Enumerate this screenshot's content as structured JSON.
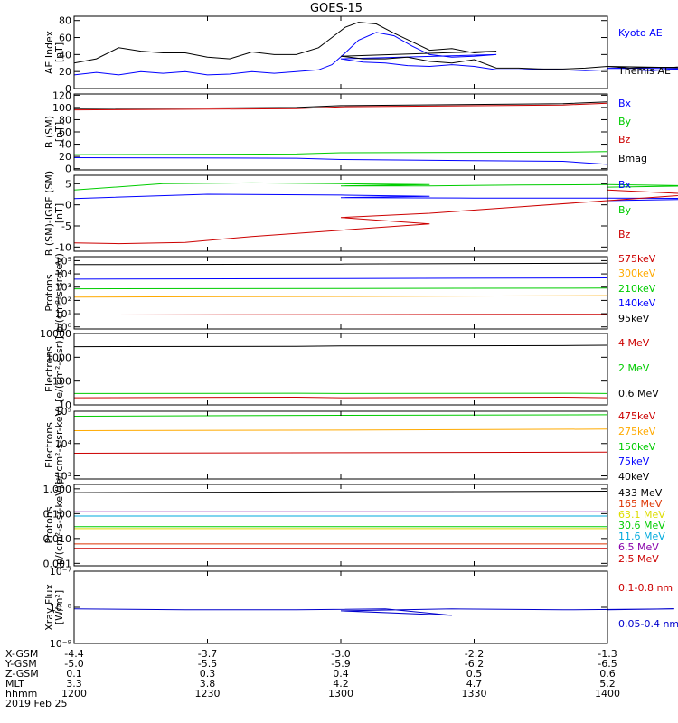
{
  "title": "GOES-15",
  "chart_data": [
    {
      "type": "line",
      "ylabel": [
        "AE Index",
        "[nT]"
      ],
      "yscale": "linear",
      "ylim": [
        0,
        85
      ],
      "yticks": [
        0,
        20,
        40,
        60,
        80
      ],
      "ytick_labels": [
        "0",
        "20",
        "40",
        "60",
        "80"
      ],
      "series": [
        {
          "name": "Kyoto AE",
          "color": "#0000ff",
          "x": [
            1200,
            1205,
            1210,
            1215,
            1220,
            1225,
            1230,
            1235,
            1240,
            1245,
            1250,
            1255,
            1258,
            1261,
            1264,
            1268,
            1272,
            1276,
            1280,
            1285,
            1290,
            1295,
            1300,
            1305,
            1310,
            1315,
            1320,
            1325,
            1330,
            1335,
            1340,
            1345,
            1350,
            1355,
            1360,
            1365,
            1370,
            1375,
            1380,
            1385,
            1390,
            1395,
            1400
          ],
          "y": [
            16,
            19,
            16,
            20,
            18,
            20,
            16,
            17,
            20,
            18,
            20,
            22,
            28,
            42,
            57,
            66,
            62,
            50,
            40,
            37,
            38,
            40,
            35,
            31,
            30,
            27,
            26,
            28,
            26,
            22,
            22,
            23,
            22,
            21,
            22,
            22,
            21,
            23,
            22,
            23,
            22,
            23,
            24
          ]
        },
        {
          "name": "Themis AE",
          "color": "#000000",
          "x": [
            1200,
            1205,
            1210,
            1215,
            1220,
            1225,
            1230,
            1235,
            1240,
            1245,
            1250,
            1255,
            1258,
            1261,
            1264,
            1268,
            1272,
            1276,
            1280,
            1285,
            1290,
            1295,
            1300,
            1305,
            1310,
            1315,
            1320,
            1325,
            1330,
            1335,
            1340,
            1345,
            1350,
            1355,
            1360,
            1365,
            1370,
            1375,
            1380,
            1385,
            1390,
            1395,
            1400
          ],
          "y": [
            30,
            35,
            48,
            44,
            42,
            42,
            37,
            35,
            43,
            40,
            40,
            48,
            60,
            72,
            78,
            76,
            65,
            55,
            45,
            47,
            42,
            44,
            38,
            35,
            35,
            37,
            32,
            30,
            34,
            24,
            24,
            23,
            23,
            24,
            26,
            24,
            25,
            25,
            27,
            22,
            23,
            23,
            26
          ]
        }
      ]
    },
    {
      "type": "line",
      "ylabel": [
        "B (SM)",
        "[nT]"
      ],
      "yscale": "linear",
      "ylim": [
        -2,
        122
      ],
      "yticks": [
        0,
        20,
        40,
        60,
        80,
        100,
        120
      ],
      "ytick_labels": [
        "0",
        "20",
        "40",
        "60",
        "80",
        "100",
        "120"
      ],
      "series": [
        {
          "name": "Bx",
          "color": "#0000ff",
          "x": [
            1200,
            1250,
            1300,
            1350,
            1400
          ],
          "y": [
            18,
            17,
            15,
            12,
            7
          ]
        },
        {
          "name": "By",
          "color": "#00cc00",
          "x": [
            1200,
            1250,
            1300,
            1350,
            1400
          ],
          "y": [
            23,
            24,
            26,
            27,
            28
          ]
        },
        {
          "name": "Bz",
          "color": "#cc0000",
          "x": [
            1200,
            1250,
            1300,
            1350,
            1400
          ],
          "y": [
            96,
            98,
            101,
            104,
            107
          ]
        },
        {
          "name": "Bmag",
          "color": "#000000",
          "x": [
            1200,
            1250,
            1300,
            1350,
            1400
          ],
          "y": [
            98,
            100,
            103,
            106,
            109
          ]
        }
      ]
    },
    {
      "type": "line",
      "ylabel": [
        "B (SM)-IGRF (SM)",
        "[nT]"
      ],
      "yscale": "linear",
      "ylim": [
        -11,
        7
      ],
      "yticks": [
        -10,
        -5,
        0,
        5
      ],
      "ytick_labels": [
        "-10",
        "-5",
        "0",
        "5"
      ],
      "series": [
        {
          "name": "Bx",
          "color": "#0000ff",
          "x": [
            1200,
            1230,
            1260,
            1280,
            1300,
            1330,
            1360,
            1390,
            1400
          ],
          "y": [
            1.5,
            2.5,
            2.3,
            2,
            1.7,
            1.6,
            1.6,
            1.5,
            1
          ]
        },
        {
          "name": "By",
          "color": "#00cc00",
          "x": [
            1200,
            1220,
            1240,
            1260,
            1280,
            1300,
            1320,
            1340,
            1360,
            1380,
            1400
          ],
          "y": [
            3.5,
            5,
            5.2,
            5,
            4.8,
            4.5,
            4.5,
            4.7,
            4.8,
            4.5,
            4.2
          ]
        },
        {
          "name": "Bz",
          "color": "#cc0000",
          "x": [
            1200,
            1210,
            1225,
            1240,
            1260,
            1280,
            1300,
            1320,
            1340,
            1360,
            1380,
            1400
          ],
          "y": [
            -9,
            -9.2,
            -8.9,
            -7.5,
            -6,
            -4.5,
            -3,
            -2,
            -0.5,
            1,
            2.5,
            3.5
          ]
        }
      ]
    },
    {
      "type": "line",
      "ylabel": [
        "Protons",
        "p/(cm²-s-sr-keV)"
      ],
      "yscale": "log",
      "ylim": [
        0.7,
        200000
      ],
      "yticks": [
        1,
        10,
        100,
        1000,
        10000,
        100000
      ],
      "ytick_labels": [
        "10⁰",
        "10¹",
        "10²",
        "10³",
        "10⁴",
        "10⁵"
      ],
      "series": [
        {
          "name": "575keV",
          "color": "#cc0000",
          "x": [
            1200,
            1300,
            1400
          ],
          "y": [
            8,
            8.5,
            9
          ]
        },
        {
          "name": "300keV",
          "color": "#ffaa00",
          "x": [
            1200,
            1300,
            1400
          ],
          "y": [
            180,
            200,
            230
          ]
        },
        {
          "name": "210keV",
          "color": "#00cc00",
          "x": [
            1200,
            1300,
            1400
          ],
          "y": [
            750,
            800,
            850
          ]
        },
        {
          "name": "140keV",
          "color": "#0000ff",
          "x": [
            1200,
            1300,
            1400
          ],
          "y": [
            4000,
            4500,
            5000
          ]
        },
        {
          "name": "95keV",
          "color": "#000000",
          "x": [
            1200,
            1300,
            1400
          ],
          "y": [
            50000,
            55000,
            65000
          ]
        }
      ]
    },
    {
      "type": "line",
      "ylabel": [
        "Electrons",
        "[e/(cm²-s-sr)]"
      ],
      "yscale": "log",
      "ylim": [
        10,
        10000
      ],
      "yticks": [
        10,
        100,
        1000,
        10000
      ],
      "ytick_labels": [
        "10",
        "100",
        "1000",
        "10000"
      ],
      "series": [
        {
          "name": "4 MeV",
          "color": "#cc0000",
          "x": [
            1200,
            1250,
            1300,
            1350,
            1400
          ],
          "y": [
            20,
            21,
            20,
            21,
            20
          ]
        },
        {
          "name": "2 MeV",
          "color": "#00cc00",
          "x": [
            1200,
            1250,
            1300,
            1350,
            1400
          ],
          "y": [
            30,
            31,
            30,
            31,
            30
          ]
        },
        {
          "name": "0.6 MeV",
          "color": "#000000",
          "x": [
            1200,
            1250,
            1300,
            1350,
            1400
          ],
          "y": [
            2800,
            2900,
            3000,
            3100,
            3200
          ]
        }
      ]
    },
    {
      "type": "line",
      "ylabel": [
        "Electrons",
        "e/(cm²-s-sr-keV)"
      ],
      "yscale": "log",
      "ylim": [
        800,
        100000
      ],
      "yticks": [
        1000,
        10000,
        100000
      ],
      "ytick_labels": [
        "10³",
        "10⁴",
        "10⁵"
      ],
      "series": [
        {
          "name": "475keV",
          "color": "#cc0000",
          "x": [
            1200,
            1300,
            1400
          ],
          "y": [
            5000,
            5200,
            5400
          ]
        },
        {
          "name": "275keV",
          "color": "#ffaa00",
          "x": [
            1200,
            1300,
            1400
          ],
          "y": [
            25000,
            26000,
            28000
          ]
        },
        {
          "name": "150keV",
          "color": "#00cc00",
          "x": [
            1200,
            1300,
            1400
          ],
          "y": [
            70000,
            75000,
            78000
          ]
        },
        {
          "name": "75keV",
          "color": "#0000ff",
          "x": [
            1200,
            1300,
            1400
          ],
          "y": [
            null,
            null,
            null
          ]
        },
        {
          "name": "40keV",
          "color": "#000000",
          "x": [
            1200,
            1300,
            1400
          ],
          "y": [
            null,
            null,
            null
          ]
        }
      ]
    },
    {
      "type": "line",
      "ylabel": [
        "Protons",
        "[p/(cm²-s-sr-keV)]"
      ],
      "yscale": "log",
      "ylim": [
        0.0008,
        1.5
      ],
      "yticks": [
        0.001,
        0.01,
        0.1,
        1
      ],
      "ytick_labels": [
        "0.001",
        "0.010",
        "0.100",
        "1.000"
      ],
      "series": [
        {
          "name": "433 MeV",
          "color": "#000000",
          "x": [
            1200,
            1300,
            1400
          ],
          "y": [
            0.7,
            0.75,
            0.8
          ]
        },
        {
          "name": "165 MeV",
          "color": "#dd3300",
          "x": [
            1200,
            1300,
            1400
          ],
          "y": [
            0.006,
            0.006,
            0.006
          ]
        },
        {
          "name": "63.1 MeV",
          "color": "#dddd00",
          "x": [
            1200,
            1300,
            1400
          ],
          "y": [
            0.025,
            0.025,
            0.025
          ]
        },
        {
          "name": "30.6 MeV",
          "color": "#00cc00",
          "x": [
            1200,
            1300,
            1400
          ],
          "y": [
            0.03,
            0.03,
            0.03
          ]
        },
        {
          "name": "11.6 MeV",
          "color": "#00aadd",
          "x": [
            1200,
            1300,
            1400
          ],
          "y": [
            0.08,
            0.08,
            0.08
          ]
        },
        {
          "name": "6.5 MeV",
          "color": "#8800aa",
          "x": [
            1200,
            1300,
            1400
          ],
          "y": [
            0.12,
            0.12,
            0.12
          ]
        },
        {
          "name": "2.5 MeV",
          "color": "#cc0000",
          "x": [
            1200,
            1300,
            1400
          ],
          "y": [
            0.004,
            0.004,
            0.004
          ]
        }
      ]
    },
    {
      "type": "line",
      "ylabel": [
        "Xray Flux",
        "[W/m²]"
      ],
      "yscale": "log",
      "ylim": [
        1e-09,
        1e-07
      ],
      "yticks": [
        1e-09,
        1e-08,
        1e-07
      ],
      "ytick_labels": [
        "10⁻⁹",
        "10⁻⁸",
        "10⁻⁷"
      ],
      "series": [
        {
          "name": "0.1-0.8 nm",
          "color": "#cc0000",
          "x": [
            1200,
            1400
          ],
          "y": [
            null,
            null
          ]
        },
        {
          "name": "0.05-0.4 nm",
          "color": "#0000cc",
          "x": [
            1200,
            1225,
            1250,
            1270,
            1285,
            1300,
            1325,
            1350,
            1375,
            1400
          ],
          "y": [
            9e-09,
            8.5e-09,
            8.5e-09,
            9e-09,
            6e-09,
            8e-09,
            9e-09,
            8.5e-09,
            9e-09,
            8.5e-09
          ]
        }
      ]
    }
  ],
  "footer": {
    "rows": [
      {
        "label": "X-GSM",
        "values": [
          "-4.4",
          "-3.7",
          "-3.0",
          "-2.2",
          "-1.3"
        ]
      },
      {
        "label": "Y-GSM",
        "values": [
          "-5.0",
          "-5.5",
          "-5.9",
          "-6.2",
          "-6.5"
        ]
      },
      {
        "label": "Z-GSM",
        "values": [
          "0.1",
          "0.3",
          "0.4",
          "0.5",
          "0.6"
        ]
      },
      {
        "label": "MLT",
        "values": [
          "3.3",
          "3.8",
          "4.2",
          "4.7",
          "5.2"
        ]
      },
      {
        "label": "hhmm",
        "values": [
          "1200",
          "1230",
          "1300",
          "1330",
          "1400"
        ]
      }
    ],
    "date": "2019 Feb 25"
  }
}
